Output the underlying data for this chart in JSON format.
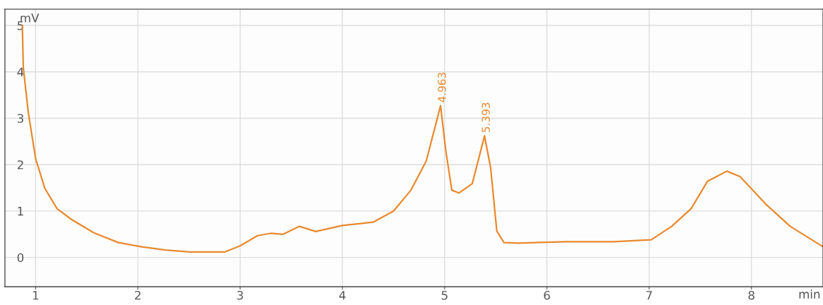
{
  "chart_data": {
    "type": "line",
    "xlabel": "min",
    "ylabel": "mV",
    "x": [
      0.87,
      0.88,
      0.93,
      1.0,
      1.09,
      1.21,
      1.35,
      1.57,
      1.81,
      2.04,
      2.27,
      2.5,
      2.85,
      3.0,
      3.17,
      3.3,
      3.42,
      3.58,
      3.74,
      4.0,
      4.3,
      4.5,
      4.67,
      4.82,
      4.96,
      5.01,
      5.07,
      5.14,
      5.27,
      5.39,
      5.45,
      5.51,
      5.58,
      5.72,
      6.19,
      6.65,
      7.02,
      7.22,
      7.41,
      7.57,
      7.76,
      7.89,
      8.14,
      8.38,
      8.7
    ],
    "series": [
      {
        "color": "#e8892e",
        "values": [
          5.0,
          4.08,
          3.1,
          2.13,
          1.49,
          1.05,
          0.82,
          0.53,
          0.32,
          0.23,
          0.16,
          0.12,
          0.12,
          0.25,
          0.47,
          0.52,
          0.5,
          0.67,
          0.56,
          0.69,
          0.76,
          1.0,
          1.45,
          2.08,
          3.27,
          2.32,
          1.45,
          1.39,
          1.59,
          2.62,
          1.93,
          0.57,
          0.32,
          0.31,
          0.34,
          0.34,
          0.38,
          0.67,
          1.05,
          1.64,
          1.86,
          1.74,
          1.15,
          0.67,
          0.23
        ]
      }
    ],
    "annotations": [
      {
        "text": "4.963",
        "x": 4.963,
        "y": 3.27
      },
      {
        "text": "5.393",
        "x": 5.393,
        "y": 2.62
      }
    ],
    "xlim": [
      0.7,
      8.7
    ],
    "ylim": [
      -0.63,
      5.35
    ],
    "xticks": [
      1,
      2,
      3,
      4,
      5,
      6,
      7,
      8
    ],
    "yticks": [
      0,
      1,
      2,
      3,
      4,
      5
    ],
    "grid": true,
    "line_style": "solid",
    "marker": "none"
  }
}
